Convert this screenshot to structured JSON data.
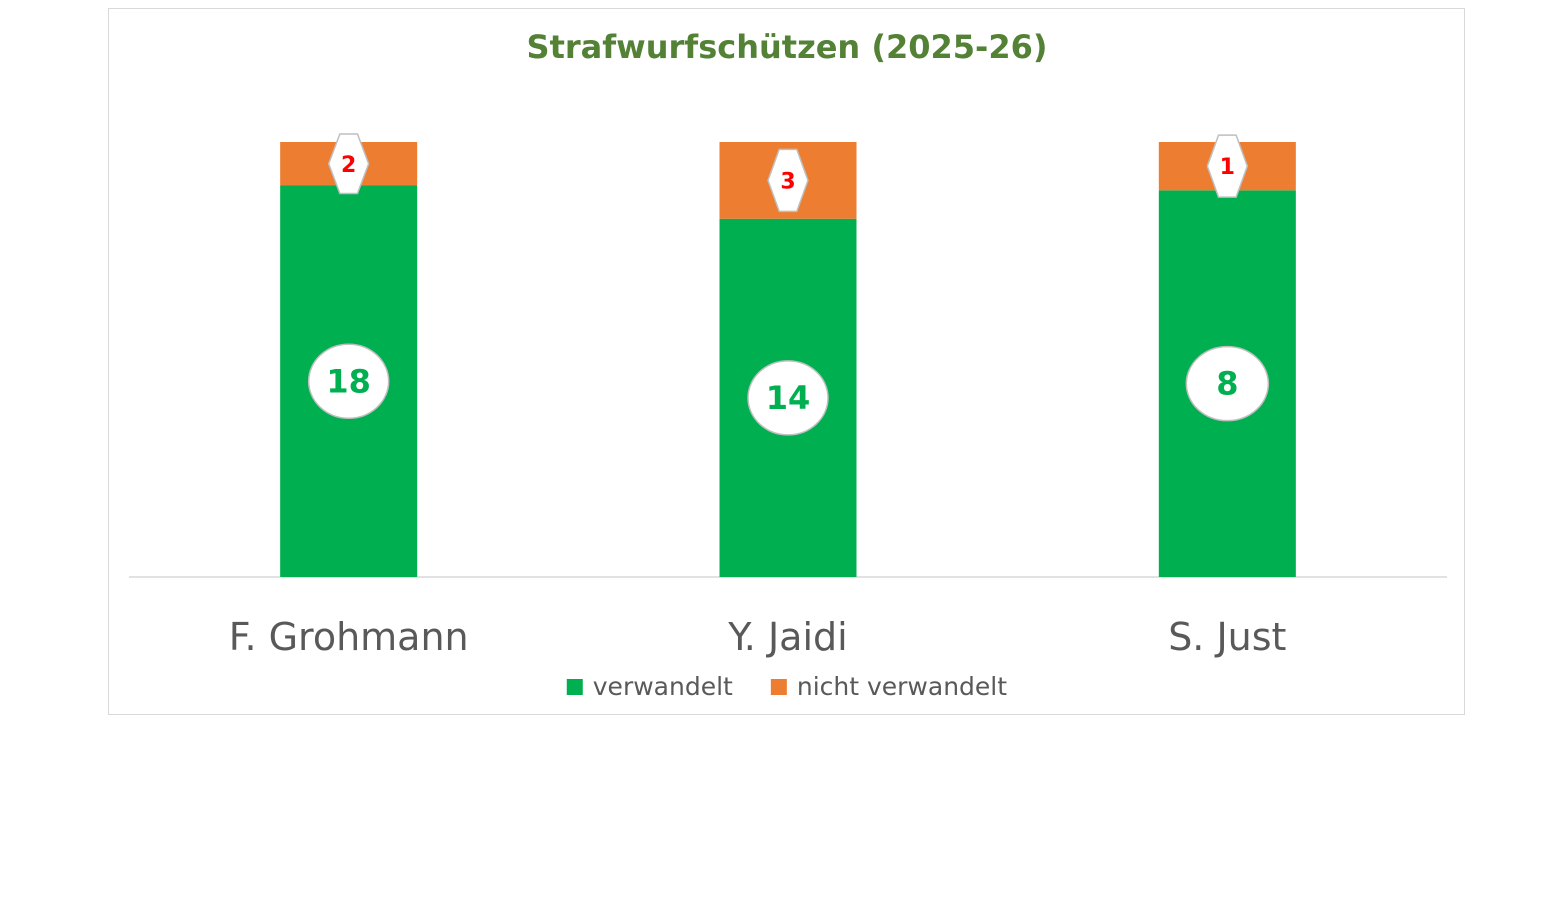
{
  "chart_data": {
    "type": "bar",
    "stacked": true,
    "title": "Strafwurfschützen (2025-26)",
    "categories": [
      "F. Grohmann",
      "Y. Jaidi",
      "S. Just"
    ],
    "series": [
      {
        "name": "verwandelt",
        "values": [
          18,
          14,
          8
        ],
        "color": "#00b050",
        "label_color": "#00b050"
      },
      {
        "name": "nicht verwandelt",
        "values": [
          2,
          3,
          1
        ],
        "color": "#ed7d31",
        "label_color": "#ff0000"
      }
    ],
    "normalized": true,
    "grid": false,
    "legend_position": "bottom"
  },
  "colors": {
    "title": "#538135",
    "axis": "#d9d9d9",
    "text": "#595959"
  }
}
